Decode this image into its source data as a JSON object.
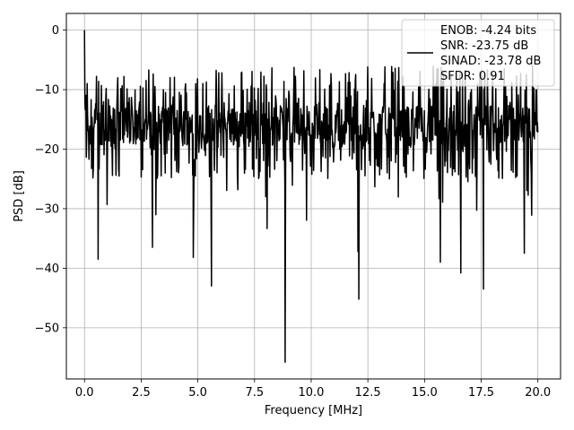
{
  "chart_data": {
    "type": "line",
    "title": "",
    "xlabel": "Frequency [MHz]",
    "ylabel": "PSD [dB]",
    "xlim": [
      -0.8,
      21.0
    ],
    "ylim": [
      -58.6,
      2.8
    ],
    "x_ticks": [
      0.0,
      2.5,
      5.0,
      7.5,
      10.0,
      12.5,
      15.0,
      17.5,
      20.0
    ],
    "x_tick_labels": [
      "0.0",
      "2.5",
      "5.0",
      "7.5",
      "10.0",
      "12.5",
      "15.0",
      "17.5",
      "20.0"
    ],
    "y_ticks": [
      0,
      -10,
      -20,
      -30,
      -40,
      -50
    ],
    "y_tick_labels": [
      "0",
      "−10",
      "−20",
      "−30",
      "−40",
      "−50"
    ],
    "grid": true,
    "legend_position": "top-right",
    "series": [
      {
        "label_lines": [
          "ENOB: -4.24 bits",
          "SNR: -23.75 dB",
          "SINAD: -23.78 dB",
          "SFDR: 0.91"
        ],
        "color": "#000000",
        "x_range": [
          0.0,
          20.0
        ],
        "points": 1024,
        "noise_floor_range": [
          -25,
          -6
        ],
        "peak": {
          "x": 0.0,
          "y": 0
        },
        "dips": [
          {
            "x": 0.6,
            "y": -38.5
          },
          {
            "x": 3.0,
            "y": -36.5
          },
          {
            "x": 4.8,
            "y": -38.2
          },
          {
            "x": 5.6,
            "y": -43.0
          },
          {
            "x": 8.85,
            "y": -55.8
          },
          {
            "x": 12.1,
            "y": -45.2
          },
          {
            "x": 15.7,
            "y": -39.0
          },
          {
            "x": 16.6,
            "y": -40.8
          },
          {
            "x": 17.6,
            "y": -43.5
          },
          {
            "x": 19.4,
            "y": -37.5
          }
        ]
      }
    ]
  }
}
